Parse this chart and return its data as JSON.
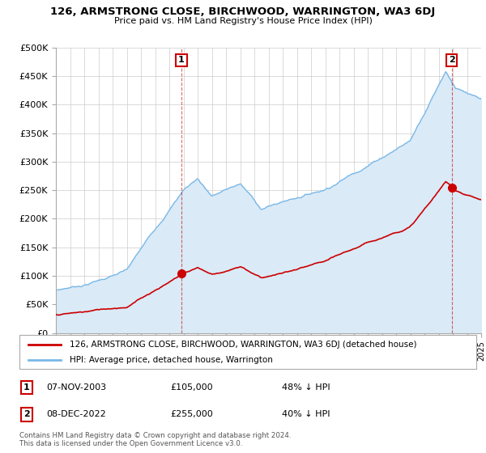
{
  "title": "126, ARMSTRONG CLOSE, BIRCHWOOD, WARRINGTON, WA3 6DJ",
  "subtitle": "Price paid vs. HM Land Registry's House Price Index (HPI)",
  "ylim": [
    0,
    500000
  ],
  "yticks": [
    0,
    50000,
    100000,
    150000,
    200000,
    250000,
    300000,
    350000,
    400000,
    450000,
    500000
  ],
  "ytick_labels": [
    "£0",
    "£50K",
    "£100K",
    "£150K",
    "£200K",
    "£250K",
    "£300K",
    "£350K",
    "£400K",
    "£450K",
    "£500K"
  ],
  "xlim_start": 1995,
  "xlim_end": 2025,
  "sale1_date": 2003.85,
  "sale1_price": 105000,
  "sale1_label": "1",
  "sale2_date": 2022.93,
  "sale2_price": 255000,
  "sale2_label": "2",
  "hpi_color": "#7ab8e8",
  "hpi_fill_color": "#daeaf7",
  "price_color": "#cc0000",
  "marker_color": "#cc0000",
  "sale_marker_size": 7,
  "legend_property_label": "126, ARMSTRONG CLOSE, BIRCHWOOD, WARRINGTON, WA3 6DJ (detached house)",
  "legend_hpi_label": "HPI: Average price, detached house, Warrington",
  "annotation1_date": "07-NOV-2003",
  "annotation1_price": "£105,000",
  "annotation1_hpi": "48% ↓ HPI",
  "annotation2_date": "08-DEC-2022",
  "annotation2_price": "£255,000",
  "annotation2_hpi": "40% ↓ HPI",
  "footnote": "Contains HM Land Registry data © Crown copyright and database right 2024.\nThis data is licensed under the Open Government Licence v3.0."
}
